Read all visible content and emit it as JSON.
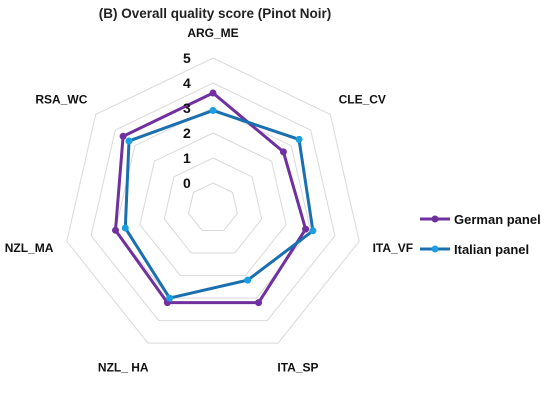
{
  "chart_data": {
    "type": "radar",
    "title": "(B) Overall quality score (Pinot Noir)",
    "categories": [
      "ARG_ME",
      "CLE_CV",
      "ITA_VF",
      "ITA_SP",
      "NZL_ HA",
      "NZL_MA",
      "RSA_WC"
    ],
    "r_ticks": [
      "0",
      "1",
      "2",
      "3",
      "4",
      "5"
    ],
    "rlim": [
      -1,
      5
    ],
    "grid": true,
    "legend_position": "right",
    "series": [
      {
        "name": "German panel",
        "color": "#7030a0",
        "values": [
          3.6,
          2.6,
          2.8,
          3.2,
          3.2,
          3.0,
          3.6
        ]
      },
      {
        "name": "Italian panel",
        "color": "#1aa0e0",
        "values": [
          2.9,
          3.4,
          3.1,
          2.2,
          3.0,
          2.6,
          3.3
        ]
      }
    ],
    "line_colors": [
      "#7030a0",
      "#1a6fb0"
    ]
  }
}
